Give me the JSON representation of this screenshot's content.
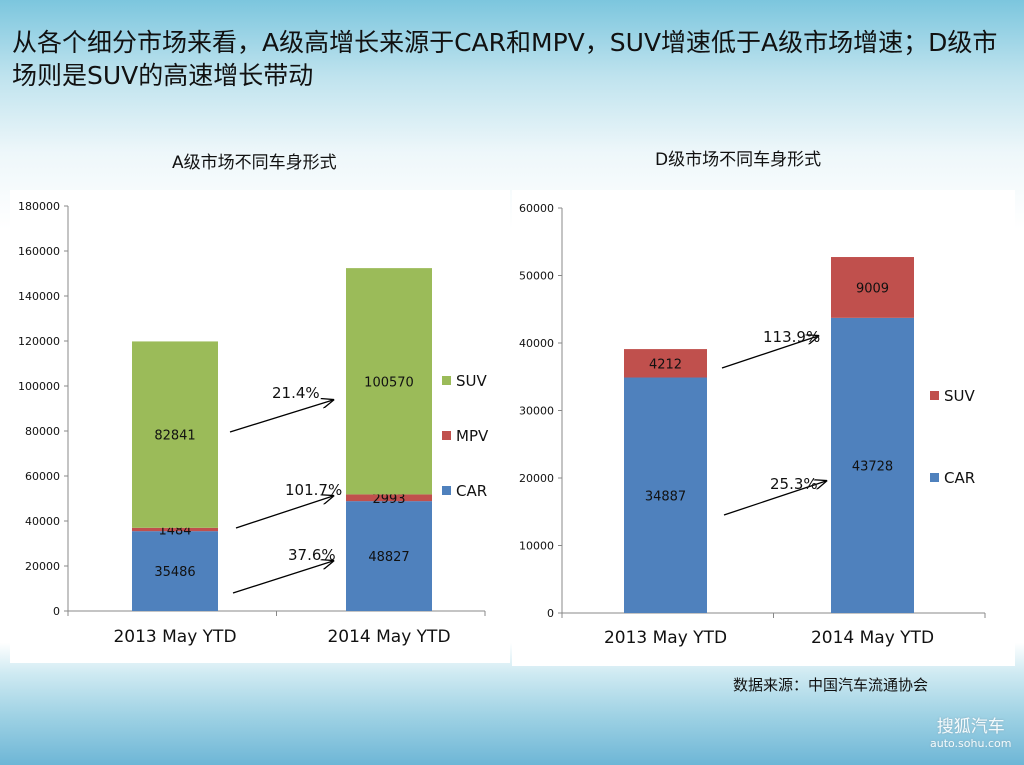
{
  "title": "从各个细分市场来看，A级高增长来源于CAR和MPV，SUV增速低于A级市场增速；D级市场则是SUV的高速增长带动",
  "source": "数据来源：中国汽车流通协会",
  "watermark": {
    "name": "搜狐汽车",
    "url": "auto.sohu.com"
  },
  "chart_data": [
    {
      "type": "bar",
      "stacked": true,
      "title": "A级市场不同车身形式",
      "categories": [
        "2013 May YTD",
        "2014 May YTD"
      ],
      "ylim": [
        0,
        180000
      ],
      "yticks": [
        0,
        20000,
        40000,
        60000,
        80000,
        100000,
        120000,
        140000,
        160000,
        180000
      ],
      "legend": "right",
      "series": [
        {
          "name": "CAR",
          "color": "#4f81bd",
          "values": [
            35486,
            48827
          ]
        },
        {
          "name": "MPV",
          "color": "#c0504d",
          "values": [
            1484,
            2993
          ]
        },
        {
          "name": "SUV",
          "color": "#9bbb59",
          "values": [
            82841,
            100570
          ]
        }
      ],
      "annotations": [
        "21.4%",
        "101.7%",
        "37.6%"
      ]
    },
    {
      "type": "bar",
      "stacked": true,
      "title": "D级市场不同车身形式",
      "categories": [
        "2013 May YTD",
        "2014 May YTD"
      ],
      "ylim": [
        0,
        60000
      ],
      "yticks": [
        0,
        10000,
        20000,
        30000,
        40000,
        50000,
        60000
      ],
      "legend": "right",
      "series": [
        {
          "name": "CAR",
          "color": "#4f81bd",
          "values": [
            34887,
            43728
          ]
        },
        {
          "name": "SUV",
          "color": "#c0504d",
          "values": [
            4212,
            9009
          ]
        }
      ],
      "annotations": [
        "113.9%",
        "25.3%"
      ]
    }
  ]
}
